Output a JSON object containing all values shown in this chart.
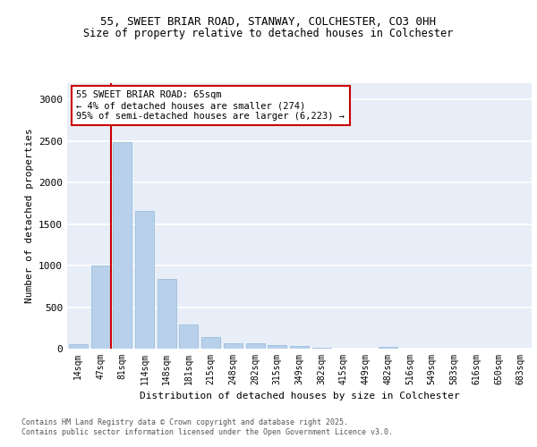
{
  "title_line1": "55, SWEET BRIAR ROAD, STANWAY, COLCHESTER, CO3 0HH",
  "title_line2": "Size of property relative to detached houses in Colchester",
  "xlabel": "Distribution of detached houses by size in Colchester",
  "ylabel": "Number of detached properties",
  "categories": [
    "14sqm",
    "47sqm",
    "81sqm",
    "114sqm",
    "148sqm",
    "181sqm",
    "215sqm",
    "248sqm",
    "282sqm",
    "315sqm",
    "349sqm",
    "382sqm",
    "415sqm",
    "449sqm",
    "482sqm",
    "516sqm",
    "549sqm",
    "583sqm",
    "616sqm",
    "650sqm",
    "683sqm"
  ],
  "values": [
    55,
    1005,
    2480,
    1660,
    835,
    295,
    140,
    65,
    60,
    45,
    30,
    10,
    0,
    0,
    25,
    0,
    0,
    0,
    0,
    0,
    0
  ],
  "bar_color": "#b8d0ea",
  "bar_edge_color": "#90b8d8",
  "property_line_x": 1.5,
  "annotation_text": "55 SWEET BRIAR ROAD: 65sqm\n← 4% of detached houses are smaller (274)\n95% of semi-detached houses are larger (6,223) →",
  "annotation_box_color": "#ffffff",
  "annotation_box_edge": "#cc0000",
  "property_line_color": "#cc0000",
  "background_color": "#e8eef8",
  "grid_color": "#ffffff",
  "footer_text": "Contains HM Land Registry data © Crown copyright and database right 2025.\nContains public sector information licensed under the Open Government Licence v3.0.",
  "ylim": [
    0,
    3200
  ],
  "yticks": [
    0,
    500,
    1000,
    1500,
    2000,
    2500,
    3000
  ]
}
